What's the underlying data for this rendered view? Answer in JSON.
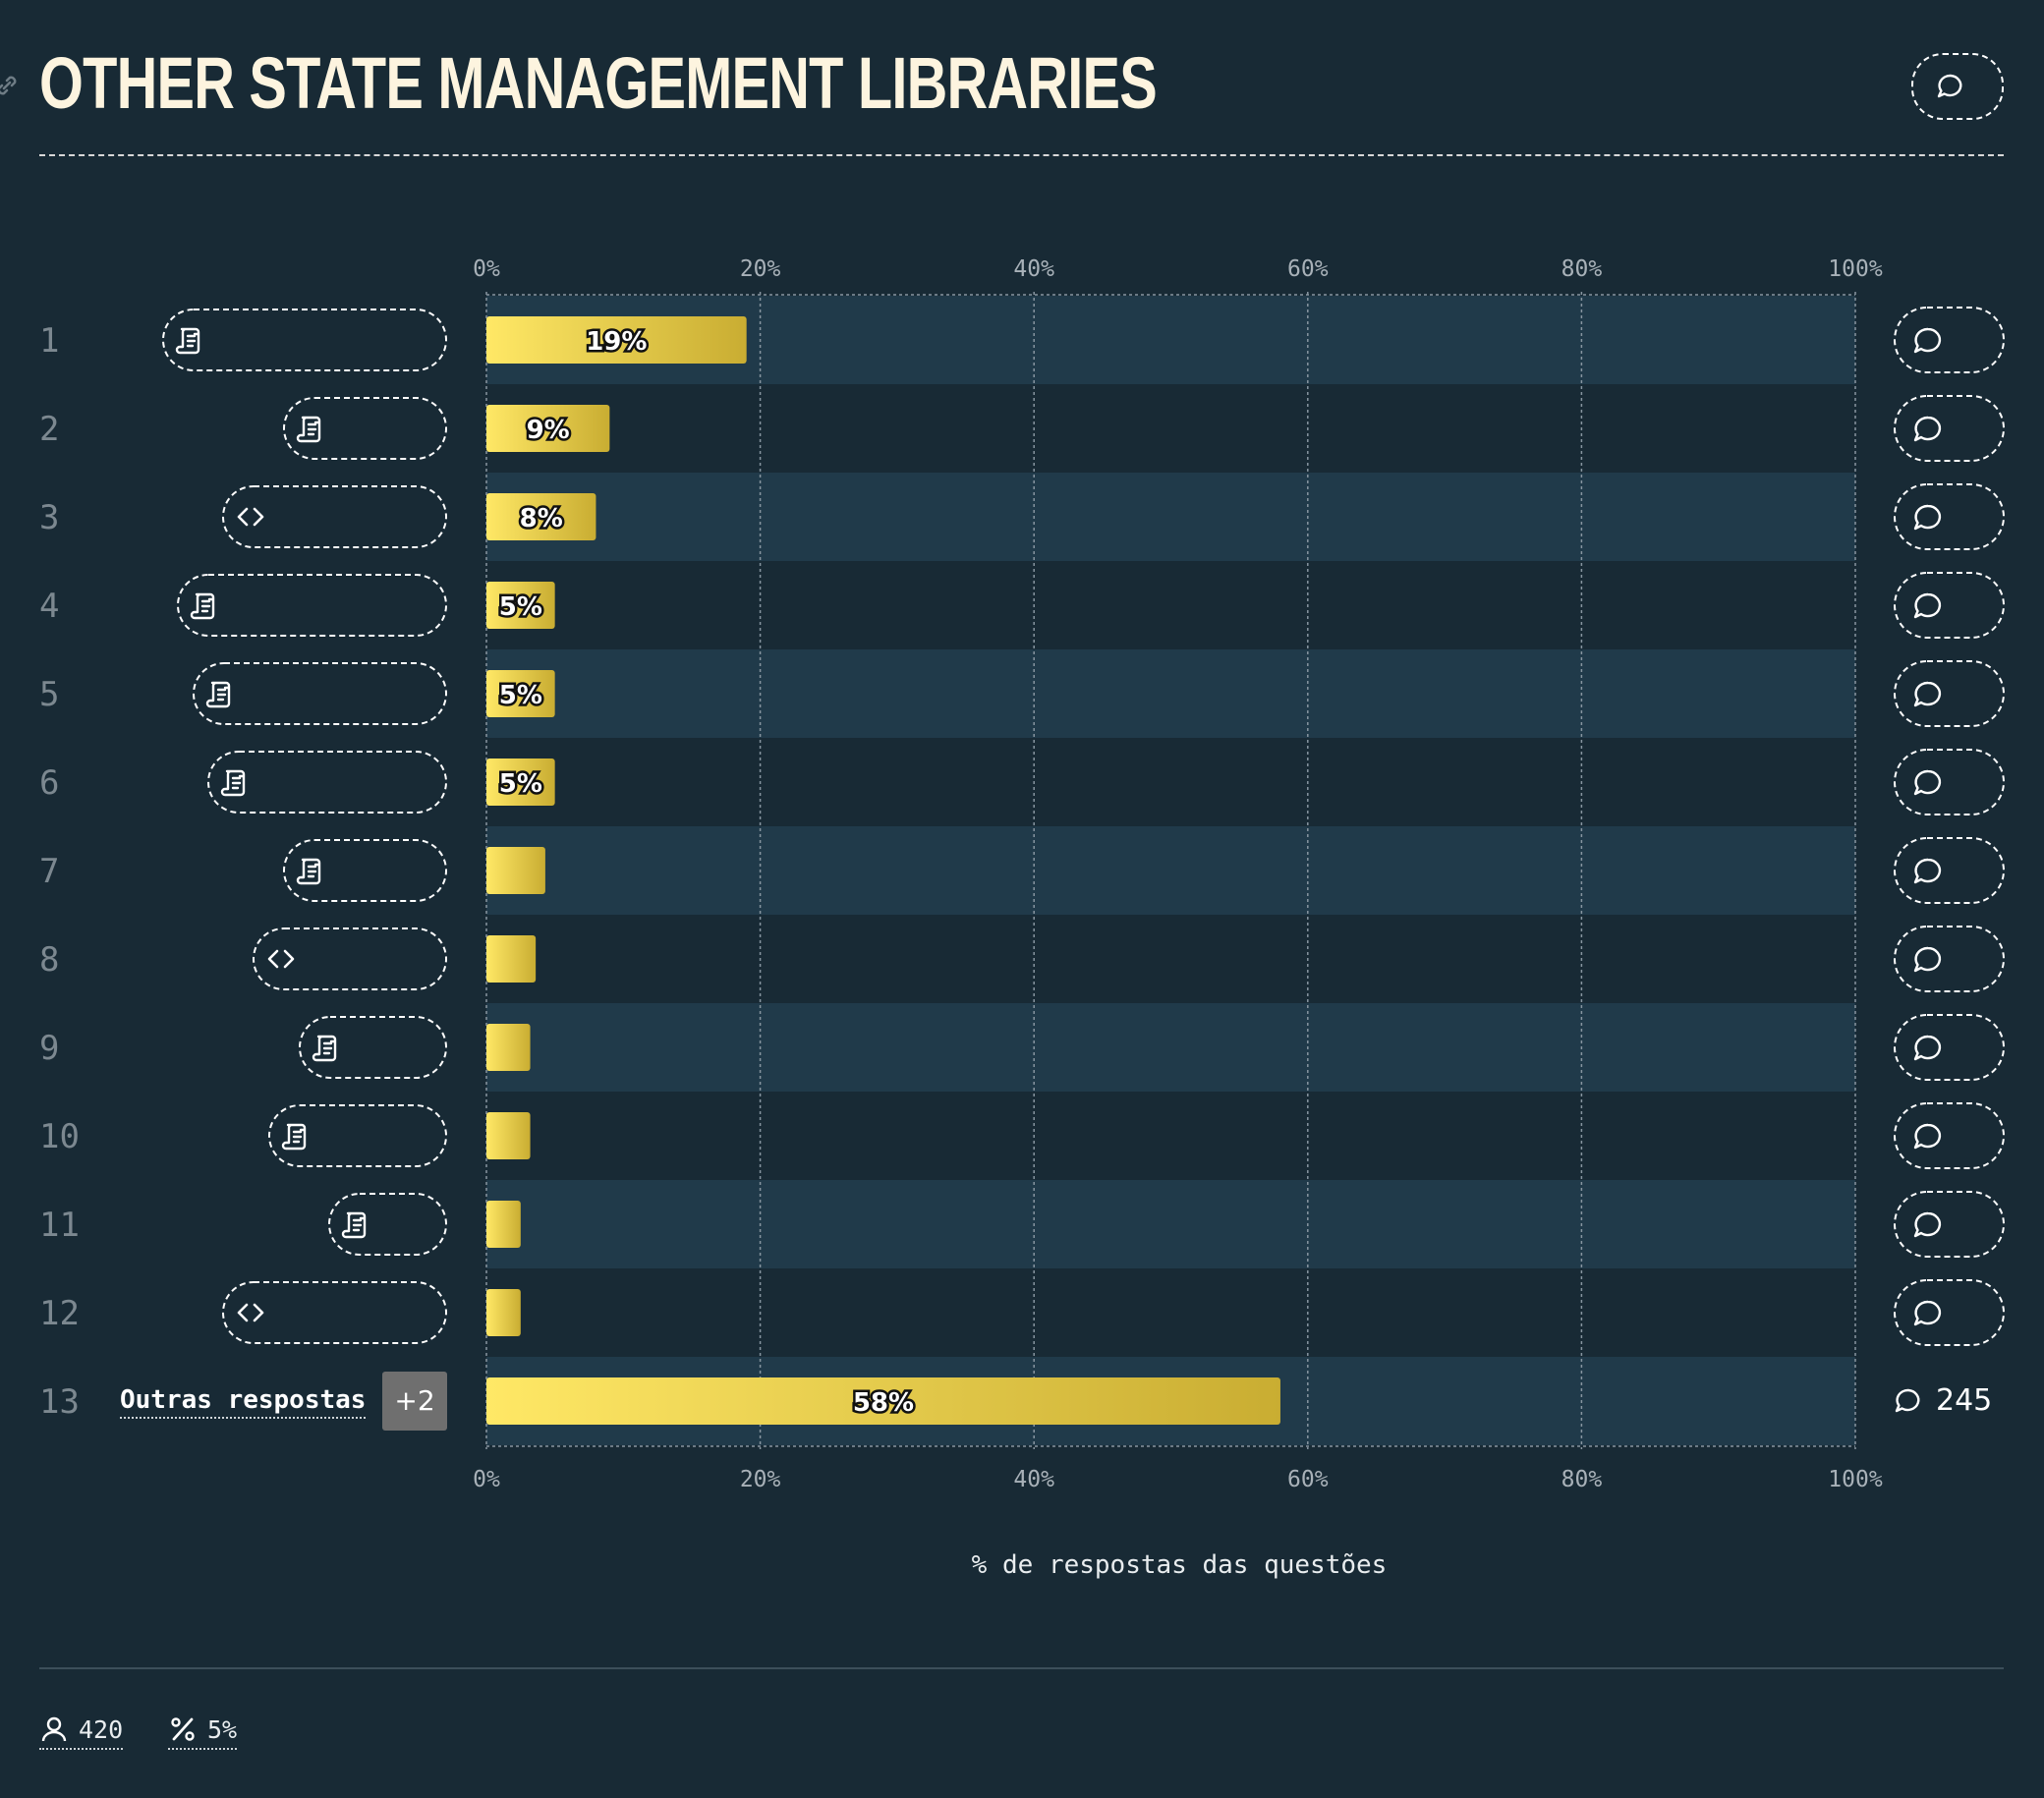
{
  "title": "OTHER STATE MANAGEMENT LIBRARIES",
  "colors": {
    "background": "#182a35",
    "band_odd": "#203a4a",
    "bar_start": "#ffe866",
    "bar_end": "#c9ad32",
    "title": "#fdf4df"
  },
  "chart_data": {
    "type": "bar",
    "orientation": "horizontal",
    "xlabel": "% de respostas das questões",
    "xlim": [
      0,
      100
    ],
    "ticks": [
      "0%",
      "20%",
      "40%",
      "60%",
      "80%",
      "100%"
    ],
    "rows": [
      {
        "rank": "1",
        "icon": "document-icon",
        "value": 19,
        "label": "19%"
      },
      {
        "rank": "2",
        "icon": "document-icon",
        "value": 9,
        "label": "9%"
      },
      {
        "rank": "3",
        "icon": "code-icon",
        "value": 8,
        "label": "8%"
      },
      {
        "rank": "4",
        "icon": "document-icon",
        "value": 5,
        "label": "5%"
      },
      {
        "rank": "5",
        "icon": "document-icon",
        "value": 5,
        "label": "5%"
      },
      {
        "rank": "6",
        "icon": "document-icon",
        "value": 5,
        "label": "5%"
      },
      {
        "rank": "7",
        "icon": "document-icon",
        "value": 4.3,
        "label": ""
      },
      {
        "rank": "8",
        "icon": "code-icon",
        "value": 3.6,
        "label": ""
      },
      {
        "rank": "9",
        "icon": "document-icon",
        "value": 3.2,
        "label": ""
      },
      {
        "rank": "10",
        "icon": "document-icon",
        "value": 3.2,
        "label": ""
      },
      {
        "rank": "11",
        "icon": "document-icon",
        "value": 2.5,
        "label": ""
      },
      {
        "rank": "12",
        "icon": "code-icon",
        "value": 2.5,
        "label": ""
      },
      {
        "rank": "13",
        "icon": "",
        "value": 58,
        "label": "58%"
      }
    ],
    "grid": true
  },
  "others": {
    "label": "Outras respostas",
    "badge": "+2",
    "comment_count": "245"
  },
  "footer": {
    "respondents": "420",
    "percent": "5%",
    "respondents_icon": "user-icon",
    "percent_icon": "percent-icon"
  }
}
